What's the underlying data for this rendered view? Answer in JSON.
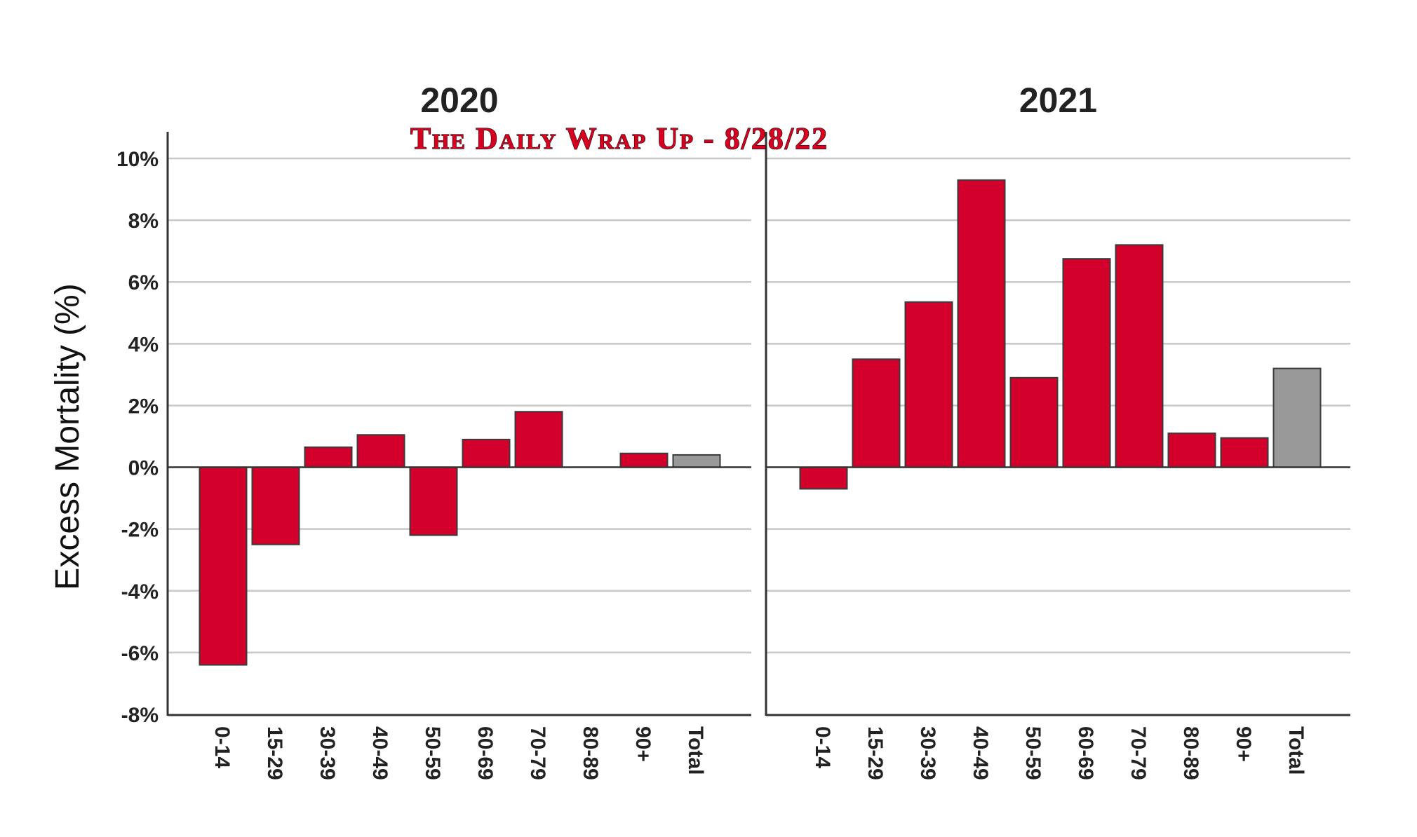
{
  "watermark": "The Daily Wrap Up - 8/28/22",
  "colors": {
    "bar": "#d4002c",
    "total_bar": "#999999",
    "grid": "#c8c8c8",
    "axis": "#333333"
  },
  "chart_data": {
    "type": "bar",
    "ylabel": "Excess Mortality (%)",
    "ylim": [
      -8,
      10
    ],
    "yticks": [
      10,
      8,
      6,
      4,
      2,
      0,
      -2,
      -4,
      -6,
      -8
    ],
    "ytick_labels": [
      "10%",
      "8%",
      "6%",
      "4%",
      "2%",
      "0%",
      "-2%",
      "-4%",
      "-6%",
      "-8%"
    ],
    "grid": true,
    "categories": [
      "0-14",
      "15-29",
      "30-39",
      "40-49",
      "50-59",
      "60-69",
      "70-79",
      "80-89",
      "90+",
      "Total"
    ],
    "panels": [
      {
        "title": "2020",
        "values": [
          -6.4,
          -2.5,
          0.65,
          1.05,
          -2.2,
          0.9,
          1.8,
          0.0,
          0.45,
          0.4
        ]
      },
      {
        "title": "2021",
        "values": [
          -0.7,
          3.5,
          5.35,
          9.3,
          2.9,
          6.75,
          7.2,
          1.1,
          0.95,
          3.2
        ]
      }
    ]
  }
}
